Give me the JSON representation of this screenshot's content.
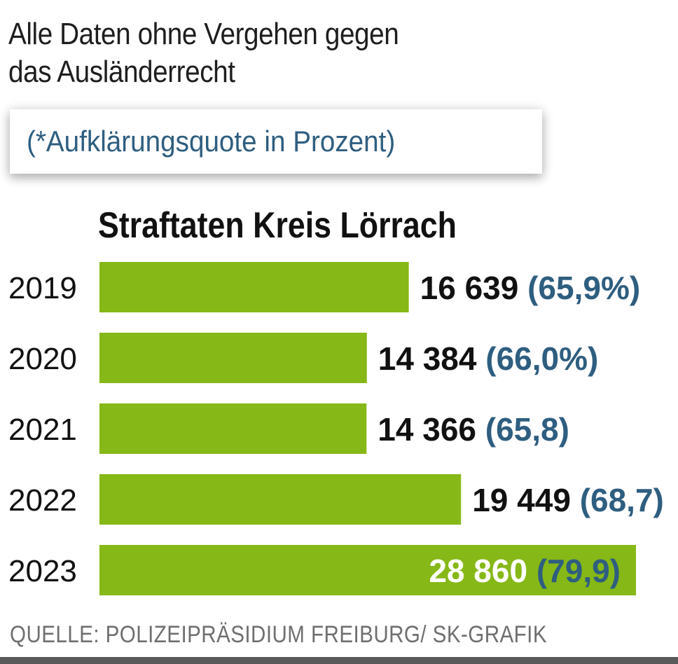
{
  "header": {
    "line1": "Alle Daten ohne Vergehen gegen",
    "line2": "das Ausländerrecht",
    "note": "(*Aufklärungsquote in Prozent)"
  },
  "source": "QUELLE: POLIZEIPRÄSIDIUM FREIBURG/ SK-GRAFIK",
  "colors": {
    "bar": "#86b817",
    "value_text": "#111111",
    "value_text_inside": "#ffffff",
    "quote_text": "#2e5e80",
    "year_text": "#111111"
  },
  "chart_data": {
    "type": "bar",
    "orientation": "horizontal",
    "title": "Straftaten Kreis Lörrach",
    "categories": [
      "2019",
      "2020",
      "2021",
      "2022",
      "2023"
    ],
    "values": [
      16639,
      14384,
      14366,
      19449,
      28860
    ],
    "value_labels": [
      "16 639",
      "14 384",
      "14 366",
      "19 449",
      "28 860"
    ],
    "quote_labels": [
      "(65,9%)",
      "(66,0%)",
      "(65,8)",
      "(68,7)",
      "(79,9)"
    ],
    "quote_values": [
      65.9,
      66.0,
      65.8,
      68.7,
      79.9
    ],
    "xlim": [
      0,
      28860
    ]
  }
}
